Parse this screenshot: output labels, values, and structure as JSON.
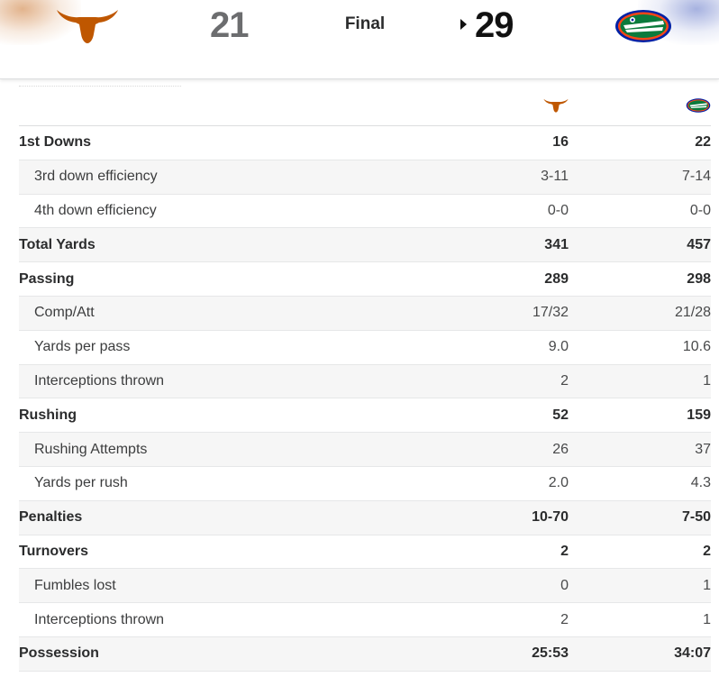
{
  "scoreboard": {
    "home_team_logo": "texas-longhorns-logo",
    "away_team_logo": "florida-gators-logo",
    "home_score": "21",
    "status": "Final",
    "away_score": "29",
    "possession_indicator": "triangle-right",
    "colors": {
      "home": "#bf5700",
      "away_blue": "#0021a5",
      "away_orange": "#fa4616",
      "away_green": "#0b7a3c"
    }
  },
  "stats": {
    "rows": [
      {
        "label": "1st Downs",
        "home": "16",
        "away": "22",
        "kind": "main"
      },
      {
        "label": "3rd down efficiency",
        "home": "3-11",
        "away": "7-14",
        "kind": "sub"
      },
      {
        "label": "4th down efficiency",
        "home": "0-0",
        "away": "0-0",
        "kind": "sub"
      },
      {
        "label": "Total Yards",
        "home": "341",
        "away": "457",
        "kind": "main"
      },
      {
        "label": "Passing",
        "home": "289",
        "away": "298",
        "kind": "main"
      },
      {
        "label": "Comp/Att",
        "home": "17/32",
        "away": "21/28",
        "kind": "sub"
      },
      {
        "label": "Yards per pass",
        "home": "9.0",
        "away": "10.6",
        "kind": "sub"
      },
      {
        "label": "Interceptions thrown",
        "home": "2",
        "away": "1",
        "kind": "sub"
      },
      {
        "label": "Rushing",
        "home": "52",
        "away": "159",
        "kind": "main"
      },
      {
        "label": "Rushing Attempts",
        "home": "26",
        "away": "37",
        "kind": "sub"
      },
      {
        "label": "Yards per rush",
        "home": "2.0",
        "away": "4.3",
        "kind": "sub"
      },
      {
        "label": "Penalties",
        "home": "10-70",
        "away": "7-50",
        "kind": "main"
      },
      {
        "label": "Turnovers",
        "home": "2",
        "away": "2",
        "kind": "main"
      },
      {
        "label": "Fumbles lost",
        "home": "0",
        "away": "1",
        "kind": "sub"
      },
      {
        "label": "Interceptions thrown",
        "home": "2",
        "away": "1",
        "kind": "sub"
      },
      {
        "label": "Possession",
        "home": "25:53",
        "away": "34:07",
        "kind": "main"
      }
    ]
  }
}
